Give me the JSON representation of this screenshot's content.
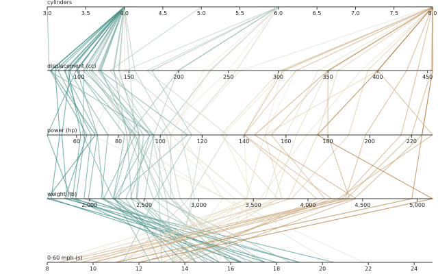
{
  "chart_data": {
    "type": "parallel",
    "colors": [
      "#1f7f78",
      "#efe8d6",
      "#a6661c"
    ],
    "color_dimension": 3,
    "dimensions": [
      {
        "name": "cylinders",
        "lim": [
          3,
          8
        ],
        "ticks": [
          {
            "value": 3,
            "label": "3.0"
          },
          3.5,
          {
            "value": 4,
            "label": "4.0"
          },
          4.5,
          {
            "value": 5,
            "label": "5.0"
          },
          5.5,
          {
            "value": 6,
            "label": "6.0"
          },
          6.5,
          {
            "value": 7,
            "label": "7.0"
          },
          7.5,
          {
            "value": 8,
            "label": "8.0"
          }
        ]
      },
      {
        "name": "displacement (cc)",
        "lim": [
          68,
          455
        ],
        "ticks": [
          100,
          150,
          200,
          250,
          300,
          350,
          400,
          450
        ]
      },
      {
        "name": "power (hp)",
        "lim": [
          46,
          230
        ],
        "ticks": [
          60,
          80,
          100,
          120,
          140,
          160,
          180,
          200,
          220
        ]
      },
      {
        "name": "weight (lb)",
        "lim": [
          1613,
          5140
        ],
        "ticks": [
          {
            "value": 2000,
            "label": "2,000"
          },
          {
            "value": 2500,
            "label": "2,500"
          },
          {
            "value": 3000,
            "label": "3,000"
          },
          {
            "value": 3500,
            "label": "3,500"
          },
          {
            "value": 4000,
            "label": "4,000"
          },
          {
            "value": 4500,
            "label": "4,500"
          },
          {
            "value": 5000,
            "label": "5,000"
          }
        ]
      },
      {
        "name": "0-60 mph (s)",
        "lim": [
          8,
          24.8
        ],
        "ticks": [
          8,
          10,
          12,
          14,
          16,
          18,
          20,
          22,
          24
        ]
      }
    ],
    "rows": [
      [
        4,
        97,
        88,
        2130,
        14.5
      ],
      [
        4,
        97,
        46,
        1835,
        20.5
      ],
      [
        4,
        110,
        87,
        2672,
        17.5
      ],
      [
        4,
        107,
        90,
        2430,
        14.5
      ],
      [
        4,
        104,
        95,
        2375,
        17.5
      ],
      [
        4,
        121,
        113,
        2234,
        12.5
      ],
      [
        4,
        140,
        90,
        2264,
        15.5
      ],
      [
        4,
        98,
        70,
        2125,
        16.5
      ],
      [
        4,
        113,
        95,
        2228,
        14
      ],
      [
        4,
        71,
        65,
        1773,
        19
      ],
      [
        4,
        72,
        69,
        1613,
        18
      ],
      [
        4,
        76,
        52,
        1649,
        16.5
      ],
      [
        4,
        79,
        67,
        1950,
        19
      ],
      [
        4,
        91,
        53,
        1795,
        17.5
      ],
      [
        4,
        85,
        70,
        1990,
        17
      ],
      [
        4,
        90,
        75,
        2108,
        15.5
      ],
      [
        4,
        120,
        97,
        2506,
        14.5
      ],
      [
        4,
        122,
        86,
        2220,
        14
      ],
      [
        4,
        151,
        88,
        2740,
        16
      ],
      [
        4,
        134,
        96,
        2702,
        13.5
      ],
      [
        4,
        89,
        62,
        1845,
        15.3
      ],
      [
        4,
        105,
        63,
        2215,
        14.9
      ],
      [
        4,
        156,
        105,
        2745,
        16.7
      ],
      [
        4,
        141,
        80,
        3230,
        20.4
      ],
      [
        4,
        119,
        92,
        2434,
        15
      ],
      [
        4,
        146,
        67,
        3250,
        21.8
      ],
      [
        4,
        98,
        83,
        2219,
        16.5
      ],
      [
        4,
        86,
        64,
        1875,
        16.4
      ],
      [
        4,
        135,
        84,
        2385,
        12.9
      ],
      [
        4,
        112,
        88,
        2640,
        18.6
      ],
      [
        3,
        70,
        97,
        2330,
        13.5
      ],
      [
        5,
        131,
        103,
        2830,
        15.9
      ],
      [
        6,
        199,
        97,
        2774,
        15.5
      ],
      [
        6,
        200,
        85,
        2587,
        16
      ],
      [
        6,
        225,
        105,
        3439,
        15.5
      ],
      [
        6,
        250,
        100,
        3329,
        15.5
      ],
      [
        6,
        232,
        100,
        2634,
        13
      ],
      [
        6,
        258,
        110,
        2962,
        13.5
      ],
      [
        6,
        231,
        105,
        3425,
        16.9
      ],
      [
        6,
        173,
        115,
        2595,
        11.3
      ],
      [
        6,
        146,
        120,
        2930,
        13.8
      ],
      [
        6,
        168,
        132,
        2910,
        11.4
      ],
      [
        8,
        307,
        130,
        3504,
        12
      ],
      [
        8,
        350,
        165,
        3693,
        11.5
      ],
      [
        8,
        318,
        150,
        3436,
        11
      ],
      [
        8,
        304,
        150,
        3433,
        12
      ],
      [
        8,
        302,
        140,
        3449,
        10.5
      ],
      [
        8,
        429,
        198,
        4341,
        10
      ],
      [
        8,
        454,
        220,
        4354,
        9
      ],
      [
        8,
        440,
        215,
        4312,
        8.5
      ],
      [
        8,
        455,
        225,
        4425,
        10
      ],
      [
        8,
        390,
        190,
        3850,
        8.5
      ],
      [
        8,
        383,
        170,
        3563,
        10
      ],
      [
        8,
        340,
        160,
        3609,
        8
      ],
      [
        8,
        400,
        150,
        3761,
        9.5
      ],
      [
        8,
        360,
        175,
        3821,
        11
      ],
      [
        8,
        350,
        145,
        4440,
        14
      ],
      [
        8,
        318,
        140,
        4080,
        13.7
      ],
      [
        8,
        400,
        230,
        4278,
        9.5
      ],
      [
        8,
        351,
        153,
        4154,
        13.5
      ],
      [
        8,
        305,
        140,
        4215,
        13
      ],
      [
        8,
        262,
        110,
        3221,
        13.5
      ],
      [
        8,
        455,
        225,
        4951,
        11
      ],
      [
        8,
        400,
        175,
        5140,
        12
      ],
      [
        8,
        302,
        129,
        3725,
        13.4
      ],
      [
        8,
        350,
        180,
        4380,
        12.1
      ]
    ]
  }
}
